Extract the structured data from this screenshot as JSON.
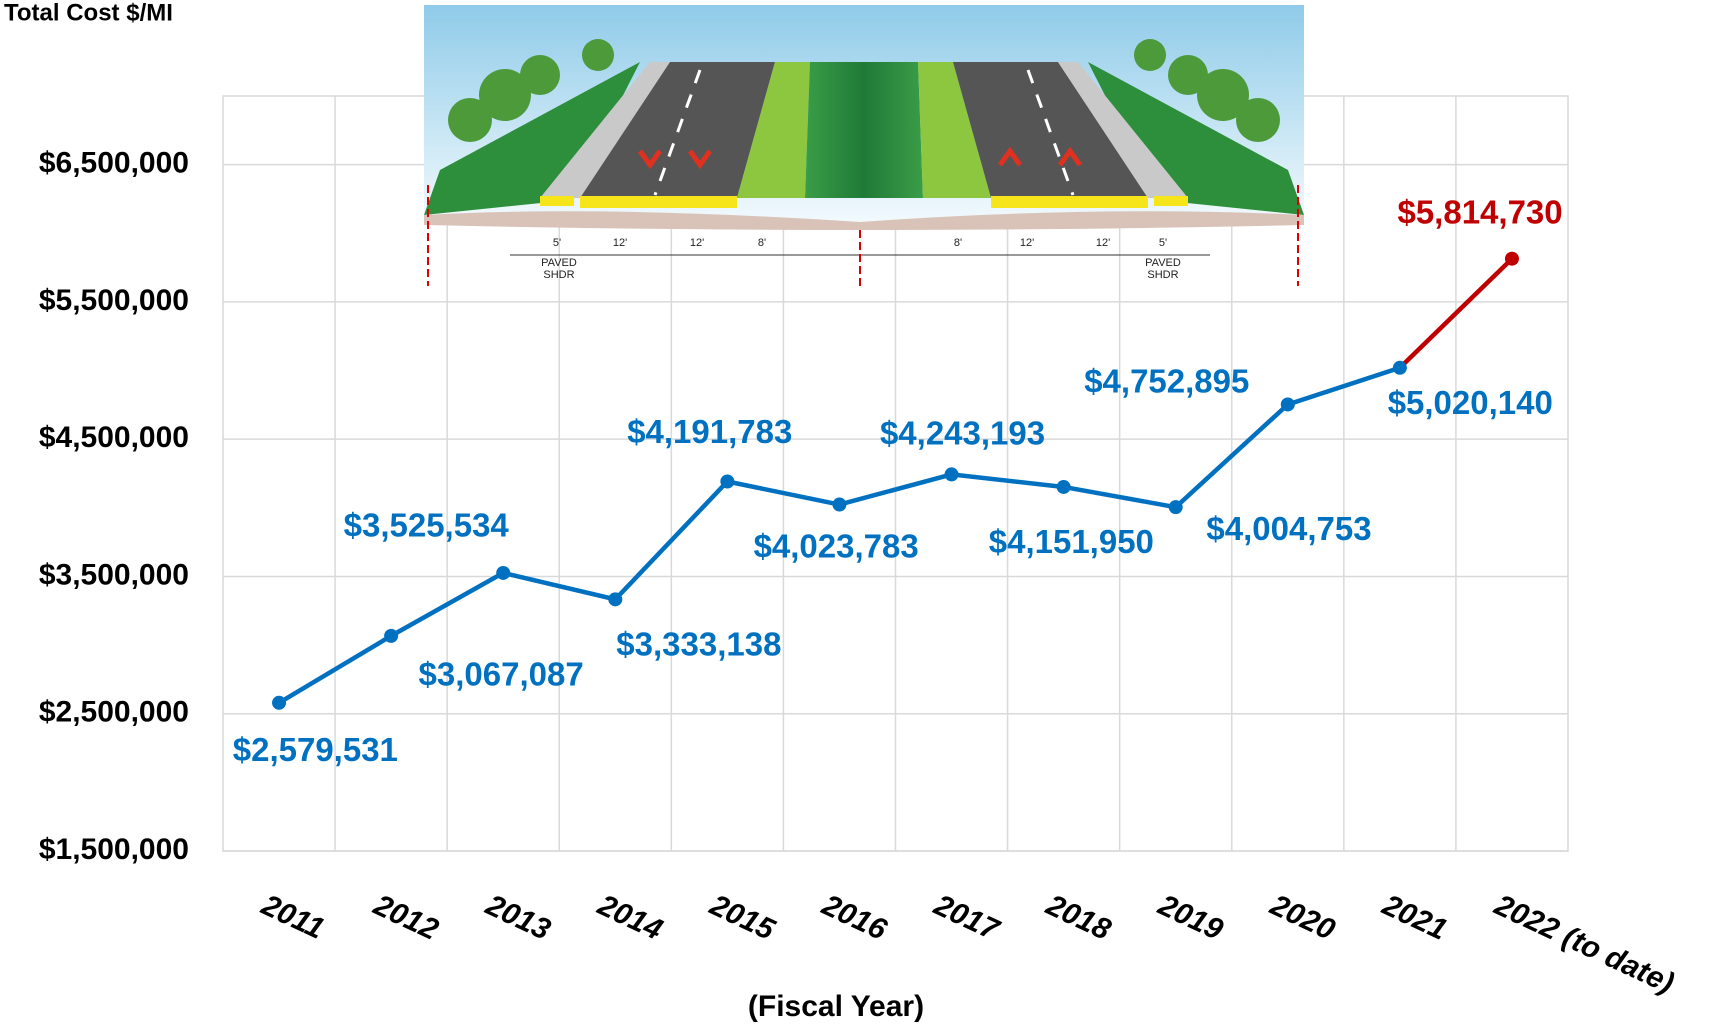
{
  "chart_data": {
    "type": "line",
    "title": "Total Cost $/MI",
    "x_label": "(Fiscal Year)",
    "categories": [
      "2011",
      "2012",
      "2013",
      "2014",
      "2015",
      "2016",
      "2017",
      "2018",
      "2019",
      "2020",
      "2021",
      "2022 (to date)"
    ],
    "values": [
      2579531,
      3067087,
      3525534,
      3333138,
      4191783,
      4023783,
      4243193,
      4151950,
      4004753,
      4752895,
      5020140,
      5814730
    ],
    "value_labels": [
      "$2,579,531",
      "$3,067,087",
      "$3,525,534",
      "$3,333,138",
      "$4,191,783",
      "$4,023,783",
      "$4,243,193",
      "$4,151,950",
      "$4,004,753",
      "$4,752,895",
      "$5,020,140",
      "$5,814,730"
    ],
    "color": "#0070c0",
    "last_color": "#c00000",
    "ylim": [
      1500000,
      7000000
    ],
    "yticks": [
      {
        "value": 1500000,
        "label": "$1,500,000"
      },
      {
        "value": 2500000,
        "label": "$2,500,000"
      },
      {
        "value": 3500000,
        "label": "$3,500,000"
      },
      {
        "value": 4500000,
        "label": "$4,500,000"
      },
      {
        "value": 5500000,
        "label": "$5,500,000"
      },
      {
        "value": 6500000,
        "label": "$6,500,000"
      }
    ],
    "grid": true,
    "image_labels": [
      "5'",
      "12'",
      "12'",
      "8'",
      "8'",
      "12'",
      "12'",
      "5'",
      "PAVED",
      "SHDR",
      "PAVED",
      "SHDR"
    ]
  }
}
